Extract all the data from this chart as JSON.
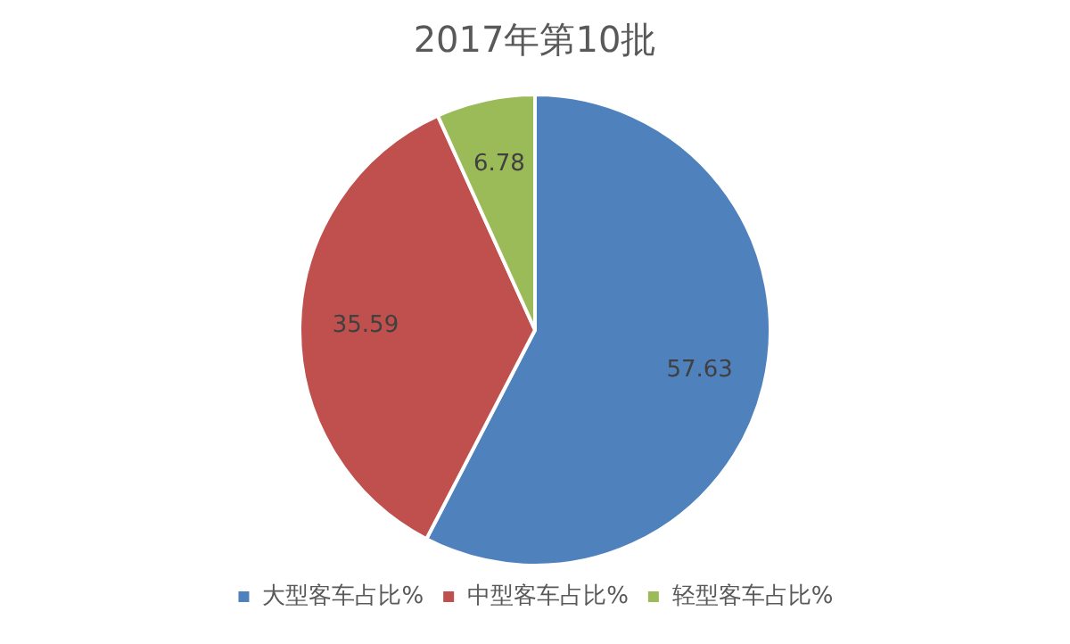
{
  "chart_data": {
    "type": "pie",
    "title": "2017年第10批",
    "categories": [
      "大型客车占比%",
      "中型客车占比%",
      "轻型客车占比%"
    ],
    "values": [
      57.63,
      35.59,
      6.78
    ],
    "colors": [
      "#4f81bd",
      "#c0504d",
      "#9bbb59"
    ],
    "data_labels": true,
    "legend": "bottom"
  }
}
